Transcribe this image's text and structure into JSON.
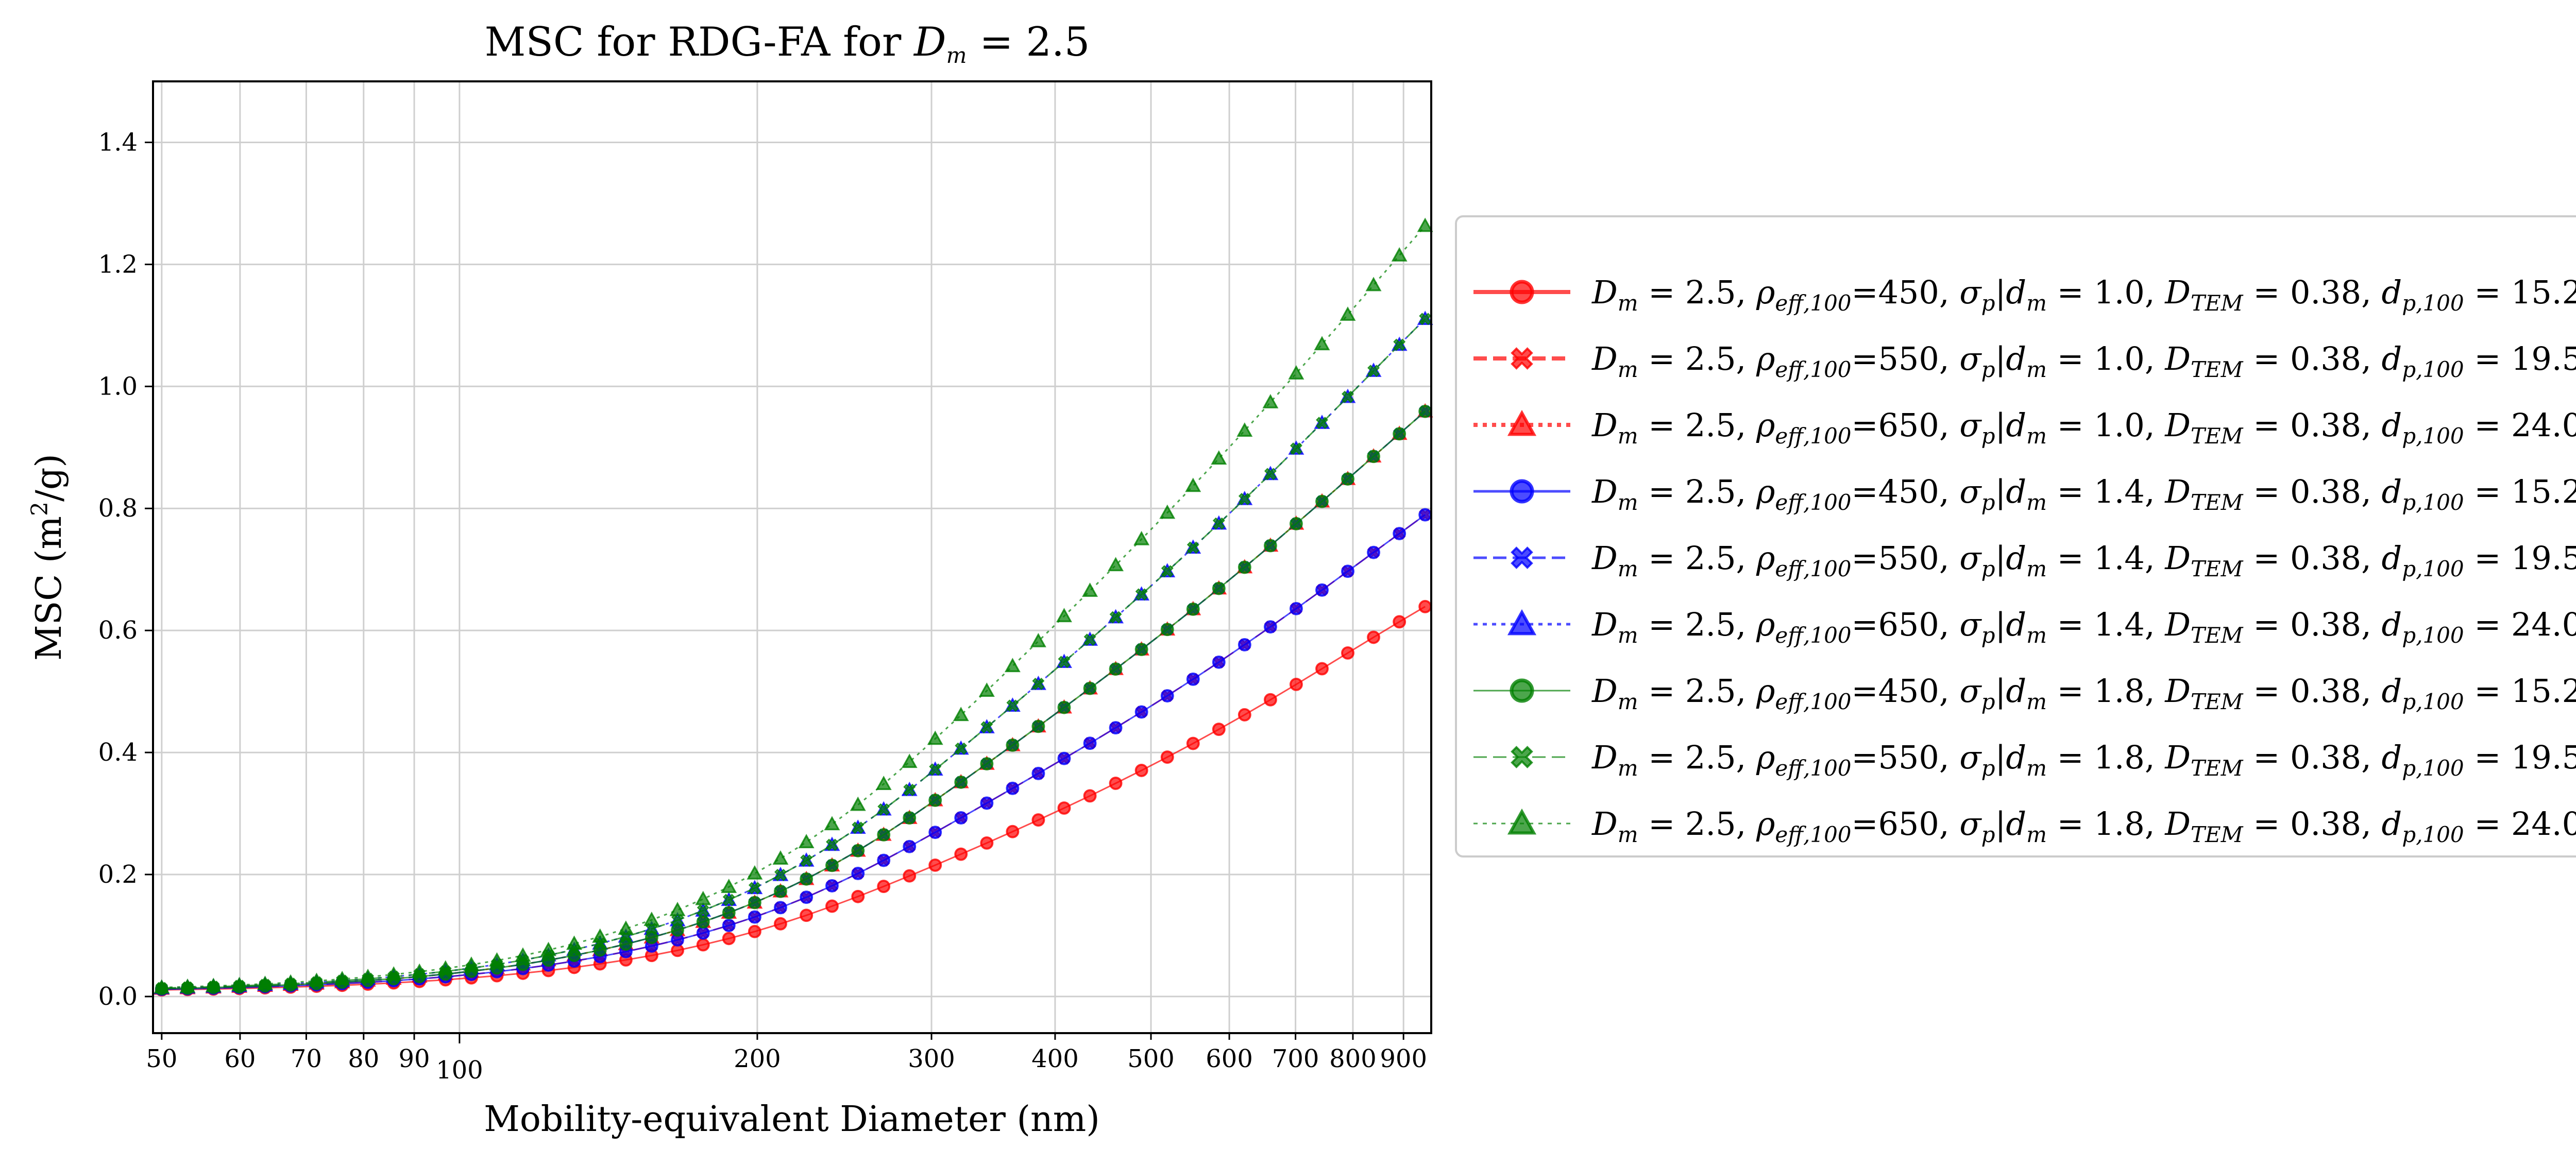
{
  "chart_data": {
    "type": "line",
    "title": "MSC for RDG-FA for D_m = 2.5",
    "title_parts": {
      "prefix": "MSC for RDG-FA for ",
      "var": "D",
      "var_sub": "m",
      "suffix": " = 2.5"
    },
    "xlabel": "Mobility-equivalent Diameter (nm)",
    "ylabel": "MSC (m²/g)",
    "ylabel_parts": {
      "prefix": "MSC (m",
      "sup": "2",
      "suffix": "/g)"
    },
    "x_scale": "log",
    "xlim": [
      49,
      960
    ],
    "ylim": [
      -0.06,
      1.5
    ],
    "grid": true,
    "legend_position": "outside-right",
    "x_ticks": [
      50,
      60,
      70,
      80,
      90,
      100,
      200,
      300,
      400,
      500,
      600,
      700,
      800,
      900
    ],
    "x_tick_labels": [
      "50",
      "60",
      "70",
      "80",
      "90",
      "100",
      "200",
      "300",
      "400",
      "500",
      "600",
      "700",
      "800",
      "900"
    ],
    "y_ticks": [
      0.0,
      0.2,
      0.4,
      0.6,
      0.8,
      1.0,
      1.2,
      1.4
    ],
    "y_tick_labels": [
      "0.0",
      "0.2",
      "0.4",
      "0.6",
      "0.8",
      "1.0",
      "1.2",
      "1.4"
    ],
    "x": [
      50,
      53.1,
      56.4,
      59.9,
      63.6,
      67.5,
      71.7,
      76.1,
      80.8,
      85.8,
      91.1,
      96.8,
      102.8,
      109.1,
      115.9,
      123.0,
      130.6,
      138.7,
      147.3,
      156.4,
      166.1,
      176.3,
      187.2,
      198.8,
      211.1,
      224.2,
      238.0,
      252.8,
      268.4,
      285.0,
      302.6,
      321.3,
      341.2,
      362.3,
      384.7,
      408.5,
      433.8,
      460.6,
      489.1,
      519.4,
      551.5,
      585.6,
      621.8,
      660.3,
      701.1,
      744.5,
      790.5,
      839.4,
      891.4,
      946.5
    ],
    "series": [
      {
        "legend": {
          "rho": "450",
          "sigma": "1.0",
          "D_TEM": "0.38",
          "dp": "15.2"
        },
        "color": "#ff0000",
        "marker": "circle",
        "dash": "solid",
        "values": [
          0.0108,
          0.0115,
          0.0122,
          0.0131,
          0.0142,
          0.0154,
          0.0168,
          0.0183,
          0.0202,
          0.0223,
          0.0247,
          0.0274,
          0.0306,
          0.0341,
          0.0381,
          0.0426,
          0.0477,
          0.0535,
          0.06,
          0.0673,
          0.0756,
          0.0848,
          0.0951,
          0.1065,
          0.1192,
          0.1331,
          0.1481,
          0.1639,
          0.1805,
          0.1977,
          0.2153,
          0.2333,
          0.2516,
          0.2703,
          0.2894,
          0.3089,
          0.3289,
          0.3495,
          0.3706,
          0.3924,
          0.4148,
          0.438,
          0.4618,
          0.4864,
          0.5116,
          0.5373,
          0.5631,
          0.5888,
          0.6142,
          0.6391
        ]
      },
      {
        "legend": {
          "rho": "550",
          "sigma": "1.0",
          "D_TEM": "0.38",
          "dp": "19.5"
        },
        "color": "#ff0000",
        "marker": "x",
        "dash": "dashed",
        "values": [
          0.0118,
          0.0126,
          0.0135,
          0.0146,
          0.0159,
          0.0174,
          0.0191,
          0.0211,
          0.0233,
          0.0259,
          0.0289,
          0.0323,
          0.0362,
          0.0407,
          0.0458,
          0.0515,
          0.0581,
          0.0654,
          0.0736,
          0.0827,
          0.0928,
          0.104,
          0.1165,
          0.1303,
          0.1457,
          0.1627,
          0.1815,
          0.2017,
          0.2232,
          0.2458,
          0.2691,
          0.2929,
          0.317,
          0.3412,
          0.3656,
          0.3902,
          0.4151,
          0.4405,
          0.4664,
          0.4929,
          0.5201,
          0.548,
          0.5766,
          0.6059,
          0.6358,
          0.6662,
          0.697,
          0.7279,
          0.7588,
          0.7896
        ]
      },
      {
        "legend": {
          "rho": "650",
          "sigma": "1.0",
          "D_TEM": "0.38",
          "dp": "24.0"
        },
        "color": "#ff0000",
        "marker": "triangle",
        "dash": "dotted",
        "values": [
          0.0128,
          0.0137,
          0.0148,
          0.016,
          0.0175,
          0.0192,
          0.0212,
          0.0235,
          0.0262,
          0.0292,
          0.0327,
          0.0368,
          0.0414,
          0.0467,
          0.0527,
          0.0596,
          0.0674,
          0.0761,
          0.0859,
          0.0968,
          0.1089,
          0.1224,
          0.1374,
          0.154,
          0.1724,
          0.1926,
          0.2149,
          0.2391,
          0.2651,
          0.2928,
          0.3217,
          0.3513,
          0.3815,
          0.412,
          0.4428,
          0.4738,
          0.5051,
          0.5368,
          0.5689,
          0.6016,
          0.6349,
          0.6689,
          0.7036,
          0.739,
          0.775,
          0.8115,
          0.8483,
          0.8853,
          0.9223,
          0.9591
        ]
      },
      {
        "legend": {
          "rho": "450",
          "sigma": "1.4",
          "D_TEM": "0.38",
          "dp": "15.2"
        },
        "color": "#0000ff",
        "marker": "circle",
        "dash": "solid",
        "values": [
          0.0118,
          0.0126,
          0.0135,
          0.0146,
          0.0159,
          0.0174,
          0.0191,
          0.0211,
          0.0233,
          0.0259,
          0.0289,
          0.0323,
          0.0362,
          0.0407,
          0.0458,
          0.0515,
          0.0581,
          0.0654,
          0.0736,
          0.0827,
          0.0928,
          0.104,
          0.1165,
          0.1303,
          0.1457,
          0.1627,
          0.1815,
          0.2017,
          0.2232,
          0.2458,
          0.2691,
          0.2929,
          0.317,
          0.3412,
          0.3656,
          0.3902,
          0.4151,
          0.4405,
          0.4664,
          0.4929,
          0.5201,
          0.548,
          0.5766,
          0.6059,
          0.6358,
          0.6662,
          0.697,
          0.7279,
          0.7588,
          0.7896
        ]
      },
      {
        "legend": {
          "rho": "550",
          "sigma": "1.4",
          "D_TEM": "0.38",
          "dp": "19.5"
        },
        "color": "#0000ff",
        "marker": "x",
        "dash": "dashed",
        "values": [
          0.0128,
          0.0137,
          0.0148,
          0.016,
          0.0175,
          0.0192,
          0.0212,
          0.0235,
          0.0262,
          0.0292,
          0.0327,
          0.0368,
          0.0414,
          0.0467,
          0.0527,
          0.0596,
          0.0674,
          0.0761,
          0.0859,
          0.0968,
          0.1089,
          0.1224,
          0.1374,
          0.154,
          0.1724,
          0.1926,
          0.2149,
          0.2391,
          0.2651,
          0.2928,
          0.3217,
          0.3513,
          0.3815,
          0.412,
          0.4428,
          0.4738,
          0.5051,
          0.5368,
          0.5689,
          0.6016,
          0.6349,
          0.6689,
          0.7036,
          0.739,
          0.775,
          0.8115,
          0.8483,
          0.8853,
          0.9223,
          0.9591
        ]
      },
      {
        "legend": {
          "rho": "650",
          "sigma": "1.4",
          "D_TEM": "0.38",
          "dp": "24.0"
        },
        "color": "#0000ff",
        "marker": "triangle",
        "dash": "dotted",
        "values": [
          0.0138,
          0.0148,
          0.016,
          0.0174,
          0.0191,
          0.021,
          0.0233,
          0.0259,
          0.029,
          0.0325,
          0.0365,
          0.0412,
          0.0465,
          0.0526,
          0.0596,
          0.0676,
          0.0767,
          0.0868,
          0.0982,
          0.1109,
          0.125,
          0.1408,
          0.1583,
          0.1777,
          0.1992,
          0.2228,
          0.2486,
          0.2766,
          0.3066,
          0.3386,
          0.372,
          0.4063,
          0.4413,
          0.4767,
          0.5124,
          0.5484,
          0.5848,
          0.6216,
          0.659,
          0.697,
          0.7357,
          0.7752,
          0.8154,
          0.8564,
          0.898,
          0.9402,
          0.9828,
          1.0255,
          1.0682,
          1.1106
        ]
      },
      {
        "legend": {
          "rho": "450",
          "sigma": "1.8",
          "D_TEM": "0.38",
          "dp": "15.2"
        },
        "color": "#008000",
        "marker": "circle",
        "dash": "solid",
        "values": [
          0.0128,
          0.0137,
          0.0148,
          0.016,
          0.0175,
          0.0192,
          0.0212,
          0.0235,
          0.0262,
          0.0292,
          0.0327,
          0.0368,
          0.0414,
          0.0467,
          0.0527,
          0.0596,
          0.0674,
          0.0761,
          0.0859,
          0.0968,
          0.1089,
          0.1224,
          0.1374,
          0.154,
          0.1724,
          0.1926,
          0.2149,
          0.2391,
          0.2651,
          0.2928,
          0.3217,
          0.3513,
          0.3815,
          0.412,
          0.4428,
          0.4738,
          0.5051,
          0.5368,
          0.5689,
          0.6016,
          0.6349,
          0.6689,
          0.7036,
          0.739,
          0.775,
          0.8115,
          0.8483,
          0.8853,
          0.9223,
          0.9591
        ]
      },
      {
        "legend": {
          "rho": "550",
          "sigma": "1.8",
          "D_TEM": "0.38",
          "dp": "19.5"
        },
        "color": "#008000",
        "marker": "x",
        "dash": "dashed",
        "values": [
          0.0138,
          0.0148,
          0.016,
          0.0174,
          0.0191,
          0.021,
          0.0233,
          0.0259,
          0.029,
          0.0325,
          0.0365,
          0.0412,
          0.0465,
          0.0526,
          0.0596,
          0.0676,
          0.0767,
          0.0868,
          0.0982,
          0.1109,
          0.125,
          0.1408,
          0.1583,
          0.1777,
          0.1992,
          0.2228,
          0.2486,
          0.2766,
          0.3066,
          0.3386,
          0.372,
          0.4063,
          0.4413,
          0.4767,
          0.5124,
          0.5484,
          0.5848,
          0.6216,
          0.659,
          0.697,
          0.7357,
          0.7752,
          0.8154,
          0.8564,
          0.898,
          0.9402,
          0.9828,
          1.0255,
          1.0682,
          1.1106
        ]
      },
      {
        "legend": {
          "rho": "650",
          "sigma": "1.8",
          "D_TEM": "0.38",
          "dp": "24.0"
        },
        "color": "#008000",
        "marker": "triangle",
        "dash": "dotted",
        "values": [
          0.0148,
          0.016,
          0.0173,
          0.0189,
          0.0208,
          0.023,
          0.0256,
          0.0286,
          0.0321,
          0.0361,
          0.0407,
          0.046,
          0.0521,
          0.0591,
          0.0671,
          0.0762,
          0.0865,
          0.0981,
          0.1111,
          0.1256,
          0.1417,
          0.1597,
          0.1796,
          0.2017,
          0.2261,
          0.253,
          0.2824,
          0.3142,
          0.3484,
          0.3846,
          0.4224,
          0.4614,
          0.5012,
          0.5416,
          0.5824,
          0.6235,
          0.665,
          0.707,
          0.7496,
          0.7929,
          0.8369,
          0.8818,
          0.9275,
          0.974,
          1.0213,
          1.0692,
          1.1175,
          1.1661,
          1.2147,
          1.2631
        ]
      }
    ]
  }
}
